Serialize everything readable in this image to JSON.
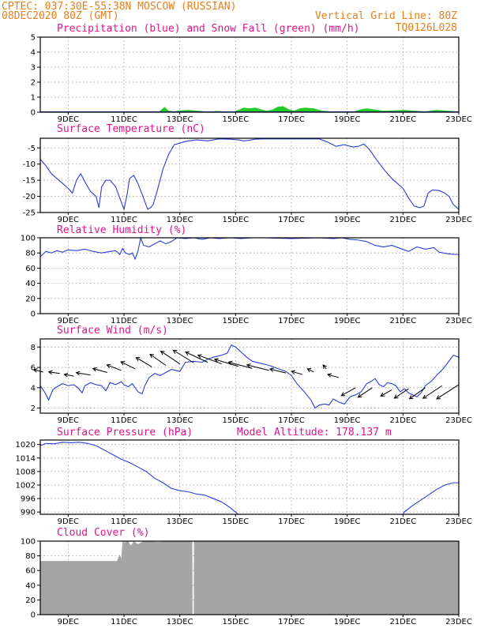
{
  "header": {
    "line1_left": "CPTEC:   037:30E-55:38N   MOSCOW (RUSSIAN)",
    "line2_left": "08DEC2020 80Z (GMT)",
    "line2_right": "Vertical Grid Line: 80Z",
    "line3_right": "TQ0126L028"
  },
  "colors": {
    "header": "#e87f1c",
    "title": "#e0148c",
    "series": "#2a3ed8",
    "snow": "#22cc22",
    "cloud": "#a6a6a6"
  },
  "x_axis": {
    "start_day": 8,
    "end_day": 23,
    "tick_days": [
      9,
      11,
      13,
      15,
      17,
      19,
      21,
      23
    ],
    "tick_labels": [
      "9DEC",
      "11DEC",
      "13DEC",
      "15DEC",
      "17DEC",
      "19DEC",
      "21DEC",
      "23DEC"
    ]
  },
  "chart_data": [
    {
      "id": "precip",
      "type": "area",
      "title": "Precipitation (blue) and Snow Fall (green) (mm/h)",
      "ylim": [
        0,
        5
      ],
      "yticks": [
        0,
        1,
        2,
        3,
        4,
        5
      ],
      "snow_series": [
        [
          8,
          0
        ],
        [
          12.2,
          0
        ],
        [
          12.3,
          0.1
        ],
        [
          12.45,
          0.35
        ],
        [
          12.6,
          0.1
        ],
        [
          12.8,
          0.05
        ],
        [
          13,
          0.12
        ],
        [
          13.3,
          0.15
        ],
        [
          13.6,
          0.1
        ],
        [
          13.9,
          0.05
        ],
        [
          14.1,
          0.03
        ],
        [
          14.3,
          0.08
        ],
        [
          14.6,
          0.05
        ],
        [
          14.9,
          0.02
        ],
        [
          15.1,
          0.15
        ],
        [
          15.3,
          0.3
        ],
        [
          15.5,
          0.25
        ],
        [
          15.7,
          0.3
        ],
        [
          15.9,
          0.2
        ],
        [
          16.1,
          0.1
        ],
        [
          16.3,
          0.15
        ],
        [
          16.5,
          0.35
        ],
        [
          16.7,
          0.4
        ],
        [
          16.9,
          0.2
        ],
        [
          17.1,
          0.1
        ],
        [
          17.3,
          0.25
        ],
        [
          17.5,
          0.3
        ],
        [
          17.8,
          0.25
        ],
        [
          18.1,
          0.1
        ],
        [
          18.4,
          0.05
        ],
        [
          18.8,
          0.05
        ],
        [
          19.2,
          0.02
        ],
        [
          19.5,
          0.2
        ],
        [
          19.7,
          0.25
        ],
        [
          19.9,
          0.2
        ],
        [
          20.3,
          0.1
        ],
        [
          20.7,
          0.12
        ],
        [
          21,
          0.15
        ],
        [
          21.4,
          0.1
        ],
        [
          21.8,
          0.05
        ],
        [
          22.2,
          0.15
        ],
        [
          22.6,
          0.1
        ],
        [
          22.9,
          0.05
        ],
        [
          23,
          0
        ]
      ]
    },
    {
      "id": "temperature",
      "type": "line",
      "title": "Surface Temperature (nC)",
      "ylim": [
        -25,
        -2
      ],
      "yticks": [
        -25,
        -20,
        -15,
        -10,
        -5
      ],
      "ytick_labels": [
        "-25",
        "-20",
        "-15",
        "-10",
        "-5"
      ],
      "series": [
        [
          8,
          -8.5
        ],
        [
          8.2,
          -10.5
        ],
        [
          8.4,
          -13
        ],
        [
          8.6,
          -14.5
        ],
        [
          8.8,
          -16
        ],
        [
          9,
          -17.5
        ],
        [
          9.15,
          -19
        ],
        [
          9.3,
          -15
        ],
        [
          9.45,
          -13
        ],
        [
          9.6,
          -15.5
        ],
        [
          9.8,
          -18.5
        ],
        [
          10,
          -20
        ],
        [
          10.1,
          -23.5
        ],
        [
          10.2,
          -17
        ],
        [
          10.35,
          -15
        ],
        [
          10.5,
          -15
        ],
        [
          10.7,
          -17
        ],
        [
          10.85,
          -20.5
        ],
        [
          11,
          -24
        ],
        [
          11.1,
          -20
        ],
        [
          11.2,
          -14.5
        ],
        [
          11.35,
          -13.5
        ],
        [
          11.5,
          -16
        ],
        [
          11.7,
          -20.5
        ],
        [
          11.85,
          -24
        ],
        [
          11.95,
          -23.5
        ],
        [
          12.05,
          -22.5
        ],
        [
          12.2,
          -18
        ],
        [
          12.4,
          -11.5
        ],
        [
          12.6,
          -7
        ],
        [
          12.8,
          -4
        ],
        [
          13.2,
          -3
        ],
        [
          13.6,
          -2.5
        ],
        [
          14,
          -2.8
        ],
        [
          14.4,
          -2.2
        ],
        [
          14.8,
          -2.3
        ],
        [
          15.1,
          -2.5
        ],
        [
          15.3,
          -2.8
        ],
        [
          15.5,
          -2.6
        ],
        [
          15.7,
          -2.3
        ],
        [
          16,
          -2.2
        ],
        [
          18,
          -2.2
        ],
        [
          18.3,
          -3.2
        ],
        [
          18.6,
          -4.5
        ],
        [
          18.9,
          -4
        ],
        [
          19.2,
          -4.7
        ],
        [
          19.4,
          -4.5
        ],
        [
          19.6,
          -3.8
        ],
        [
          19.8,
          -5.5
        ],
        [
          20,
          -8
        ],
        [
          20.3,
          -11.5
        ],
        [
          20.6,
          -14.5
        ],
        [
          20.8,
          -16
        ],
        [
          21,
          -17.5
        ],
        [
          21.2,
          -20.5
        ],
        [
          21.4,
          -23
        ],
        [
          21.6,
          -23.5
        ],
        [
          21.75,
          -23
        ],
        [
          21.9,
          -19
        ],
        [
          22.05,
          -18
        ],
        [
          22.3,
          -18.2
        ],
        [
          22.5,
          -19
        ],
        [
          22.65,
          -20
        ],
        [
          22.8,
          -22.5
        ],
        [
          23,
          -24
        ]
      ]
    },
    {
      "id": "humidity",
      "type": "line",
      "title": "Relative Humidity (%)",
      "ylim": [
        0,
        100
      ],
      "yticks": [
        0,
        20,
        40,
        60,
        80,
        100
      ],
      "ytick_labels": [
        "0",
        "20",
        "40",
        "60",
        "80",
        "100"
      ],
      "series": [
        [
          8,
          75
        ],
        [
          8.2,
          82
        ],
        [
          8.4,
          80
        ],
        [
          8.6,
          83
        ],
        [
          8.8,
          81
        ],
        [
          9,
          84
        ],
        [
          9.3,
          83
        ],
        [
          9.6,
          85
        ],
        [
          9.9,
          82
        ],
        [
          10.2,
          80
        ],
        [
          10.5,
          82
        ],
        [
          10.7,
          83
        ],
        [
          10.85,
          78
        ],
        [
          10.95,
          86
        ],
        [
          11.05,
          80
        ],
        [
          11.2,
          78
        ],
        [
          11.3,
          80
        ],
        [
          11.4,
          72
        ],
        [
          11.5,
          82
        ],
        [
          11.6,
          100
        ],
        [
          11.7,
          90
        ],
        [
          11.9,
          88
        ],
        [
          12.1,
          92
        ],
        [
          12.3,
          96
        ],
        [
          12.5,
          92
        ],
        [
          12.7,
          95
        ],
        [
          12.9,
          100
        ],
        [
          13.2,
          99
        ],
        [
          13.5,
          100
        ],
        [
          13.8,
          98
        ],
        [
          14.1,
          100
        ],
        [
          14.4,
          99
        ],
        [
          14.8,
          100
        ],
        [
          15.2,
          99
        ],
        [
          15.6,
          100
        ],
        [
          16,
          100
        ],
        [
          17,
          99
        ],
        [
          18,
          100
        ],
        [
          18.5,
          99
        ],
        [
          18.8,
          100
        ],
        [
          19.1,
          98
        ],
        [
          19.4,
          97
        ],
        [
          19.7,
          95
        ],
        [
          20,
          90
        ],
        [
          20.3,
          88
        ],
        [
          20.6,
          90
        ],
        [
          20.9,
          86
        ],
        [
          21.2,
          82
        ],
        [
          21.5,
          88
        ],
        [
          21.8,
          85
        ],
        [
          22.1,
          87
        ],
        [
          22.3,
          81
        ],
        [
          22.6,
          79
        ],
        [
          22.9,
          78
        ],
        [
          23,
          78
        ]
      ]
    },
    {
      "id": "wind",
      "type": "line",
      "title": "Surface Wind (m/s)",
      "ylim": [
        1.5,
        8.8
      ],
      "yticks": [
        2,
        4,
        6,
        8
      ],
      "ytick_labels": [
        "2",
        "4",
        "6",
        "8"
      ],
      "series": [
        [
          8,
          4.2
        ],
        [
          8.15,
          3.6
        ],
        [
          8.3,
          2.8
        ],
        [
          8.45,
          3.8
        ],
        [
          8.6,
          4.1
        ],
        [
          8.8,
          4.4
        ],
        [
          9,
          4.2
        ],
        [
          9.2,
          4.3
        ],
        [
          9.35,
          4
        ],
        [
          9.5,
          3.5
        ],
        [
          9.6,
          4.2
        ],
        [
          9.8,
          4.5
        ],
        [
          10,
          4.3
        ],
        [
          10.2,
          4.2
        ],
        [
          10.35,
          3.7
        ],
        [
          10.5,
          4.5
        ],
        [
          10.7,
          4.3
        ],
        [
          10.9,
          4.6
        ],
        [
          11,
          4.3
        ],
        [
          11.15,
          4.1
        ],
        [
          11.3,
          4.4
        ],
        [
          11.5,
          3.6
        ],
        [
          11.65,
          3.4
        ],
        [
          11.75,
          4.2
        ],
        [
          11.9,
          5
        ],
        [
          12.1,
          5.4
        ],
        [
          12.3,
          5.2
        ],
        [
          12.5,
          5.5
        ],
        [
          12.7,
          5.8
        ],
        [
          13,
          5.6
        ],
        [
          13.2,
          6.5
        ],
        [
          13.5,
          6.6
        ],
        [
          13.8,
          6.5
        ],
        [
          14,
          6.8
        ],
        [
          14.2,
          7
        ],
        [
          14.5,
          7.2
        ],
        [
          14.7,
          7.4
        ],
        [
          14.85,
          8.2
        ],
        [
          15,
          8
        ],
        [
          15.2,
          7.5
        ],
        [
          15.4,
          7
        ],
        [
          15.6,
          6.6
        ],
        [
          15.9,
          6.4
        ],
        [
          16.2,
          6.2
        ],
        [
          16.5,
          5.9
        ],
        [
          16.8,
          5.6
        ],
        [
          17,
          5.2
        ],
        [
          17.2,
          4.4
        ],
        [
          17.4,
          3.8
        ],
        [
          17.55,
          3.3
        ],
        [
          17.7,
          2.8
        ],
        [
          17.85,
          2
        ],
        [
          18,
          2.3
        ],
        [
          18.2,
          2.4
        ],
        [
          18.35,
          2.3
        ],
        [
          18.5,
          2.9
        ],
        [
          18.7,
          2.6
        ],
        [
          18.9,
          2.4
        ],
        [
          19.1,
          3.1
        ],
        [
          19.3,
          3.3
        ],
        [
          19.5,
          3.6
        ],
        [
          19.7,
          4.4
        ],
        [
          19.85,
          4.6
        ],
        [
          20,
          4.9
        ],
        [
          20.15,
          4.3
        ],
        [
          20.3,
          4.1
        ],
        [
          20.45,
          4.5
        ],
        [
          20.6,
          4.4
        ],
        [
          20.75,
          4.2
        ],
        [
          20.9,
          3.6
        ],
        [
          21.05,
          3.9
        ],
        [
          21.2,
          3.5
        ],
        [
          21.35,
          3.3
        ],
        [
          21.5,
          3.1
        ],
        [
          21.65,
          3.5
        ],
        [
          21.8,
          4.2
        ],
        [
          22,
          4.6
        ],
        [
          22.2,
          5.2
        ],
        [
          22.45,
          5.9
        ],
        [
          22.7,
          6.8
        ],
        [
          22.8,
          7.2
        ],
        [
          23,
          7
        ]
      ]
    },
    {
      "id": "pressure",
      "type": "line",
      "title": "Surface Pressure (hPa)",
      "annotation": "Model Altitude: 178.137 m",
      "ylim": [
        989,
        1022
      ],
      "yticks": [
        990,
        996,
        1002,
        1008,
        1014,
        1020
      ],
      "ytick_labels": [
        "990",
        "996",
        "1002",
        "1008",
        "1014",
        "1020"
      ],
      "series": [
        [
          8,
          1019.5
        ],
        [
          8.2,
          1020.5
        ],
        [
          8.5,
          1020.3
        ],
        [
          8.8,
          1021
        ],
        [
          9.1,
          1020.8
        ],
        [
          9.4,
          1021
        ],
        [
          9.7,
          1020.5
        ],
        [
          10,
          1019.5
        ],
        [
          10.3,
          1017.5
        ],
        [
          10.6,
          1015.5
        ],
        [
          10.9,
          1013.5
        ],
        [
          11.2,
          1012
        ],
        [
          11.5,
          1010
        ],
        [
          11.8,
          1008
        ],
        [
          12.1,
          1005
        ],
        [
          12.4,
          1003
        ],
        [
          12.7,
          1000.5
        ],
        [
          13,
          999.5
        ],
        [
          13.3,
          999
        ],
        [
          13.6,
          998
        ],
        [
          13.9,
          997.5
        ],
        [
          14.2,
          996
        ],
        [
          14.5,
          994.5
        ],
        [
          14.8,
          992
        ],
        [
          15,
          990
        ],
        [
          15.1,
          989
        ],
        [
          21,
          989
        ],
        [
          21.05,
          990
        ],
        [
          21.3,
          992.5
        ],
        [
          21.6,
          995
        ],
        [
          21.9,
          997.5
        ],
        [
          22.2,
          1000
        ],
        [
          22.5,
          1002
        ],
        [
          22.8,
          1003
        ],
        [
          23,
          1003
        ]
      ]
    },
    {
      "id": "cloud",
      "type": "area",
      "title": "Cloud Cover (%)",
      "ylim": [
        0,
        100
      ],
      "yticks": [
        0,
        20,
        40,
        60,
        80,
        100
      ],
      "ytick_labels": [
        "0",
        "20",
        "40",
        "60",
        "80",
        "100"
      ],
      "series": [
        [
          8,
          73
        ],
        [
          10.75,
          73
        ],
        [
          10.8,
          78
        ],
        [
          10.85,
          82
        ],
        [
          10.9,
          76
        ],
        [
          10.95,
          100
        ],
        [
          11,
          98
        ],
        [
          11.15,
          100
        ],
        [
          11.25,
          94
        ],
        [
          11.35,
          100
        ],
        [
          11.5,
          96
        ],
        [
          11.7,
          100
        ],
        [
          12.2,
          99
        ],
        [
          12.5,
          100
        ],
        [
          13.45,
          100
        ],
        [
          13.46,
          0
        ],
        [
          13.5,
          0
        ],
        [
          13.51,
          100
        ],
        [
          23,
          100
        ]
      ]
    }
  ]
}
